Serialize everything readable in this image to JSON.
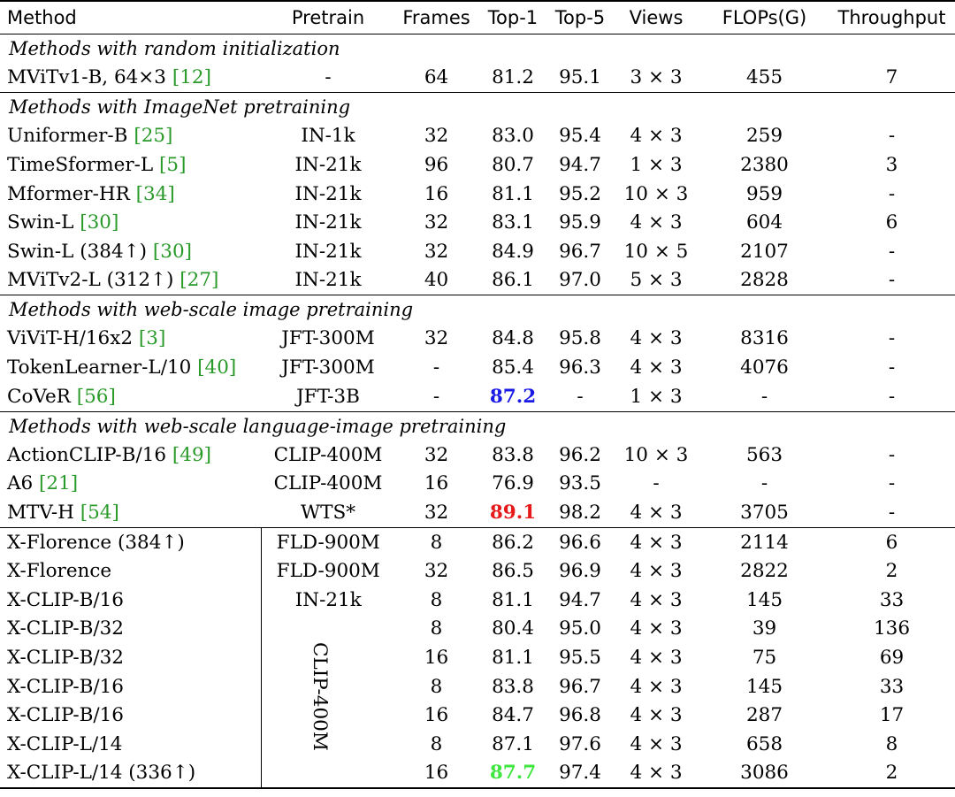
{
  "headers": {
    "method": "Method",
    "pretrain": "Pretrain",
    "frames": "Frames",
    "top1": "Top-1",
    "top5": "Top-5",
    "views": "Views",
    "flops": "FLOPs(G)",
    "throughput": "Throughput"
  },
  "sections": {
    "random": "Methods with random initialization",
    "imagenet": "Methods with ImageNet pretraining",
    "webimage": "Methods with web-scale image pretraining",
    "weblang": "Methods with web-scale language-image pretraining"
  },
  "rows": [
    {
      "method": "MViTv1-B, 64×3 ",
      "ref": "[12]",
      "pretrain": "-",
      "frames": "64",
      "top1": "81.2",
      "top5": "95.1",
      "views": "3 × 3",
      "flops": "455",
      "throughput": "7"
    },
    {
      "method": "Uniformer-B ",
      "ref": "[25]",
      "pretrain": "IN-1k",
      "frames": "32",
      "top1": "83.0",
      "top5": "95.4",
      "views": "4 × 3",
      "flops": "259",
      "throughput": "-"
    },
    {
      "method": "TimeSformer-L ",
      "ref": "[5]",
      "pretrain": "IN-21k",
      "frames": "96",
      "top1": "80.7",
      "top5": "94.7",
      "views": "1 × 3",
      "flops": "2380",
      "throughput": "3"
    },
    {
      "method": "Mformer-HR ",
      "ref": "[34]",
      "pretrain": "IN-21k",
      "frames": "16",
      "top1": "81.1",
      "top5": "95.2",
      "views": "10 × 3",
      "flops": "959",
      "throughput": "-"
    },
    {
      "method": "Swin-L ",
      "ref": "[30]",
      "pretrain": "IN-21k",
      "frames": "32",
      "top1": "83.1",
      "top5": "95.9",
      "views": "4 × 3",
      "flops": "604",
      "throughput": "6"
    },
    {
      "method": "Swin-L (384↑) ",
      "ref": "[30]",
      "pretrain": "IN-21k",
      "frames": "32",
      "top1": "84.9",
      "top5": "96.7",
      "views": "10 × 5",
      "flops": "2107",
      "throughput": "-"
    },
    {
      "method": "MViTv2-L (312↑) ",
      "ref": "[27]",
      "pretrain": "IN-21k",
      "frames": "40",
      "top1": "86.1",
      "top5": "97.0",
      "views": "5 × 3",
      "flops": "2828",
      "throughput": "-"
    },
    {
      "method": "ViViT-H/16x2 ",
      "ref": "[3]",
      "pretrain": "JFT-300M",
      "frames": "32",
      "top1": "84.8",
      "top5": "95.8",
      "views": "4 × 3",
      "flops": "8316",
      "throughput": "-"
    },
    {
      "method": "TokenLearner-L/10 ",
      "ref": "[40]",
      "pretrain": "JFT-300M",
      "frames": "-",
      "top1": "85.4",
      "top5": "96.3",
      "views": "4 × 3",
      "flops": "4076",
      "throughput": "-"
    },
    {
      "method": "CoVeR ",
      "ref": "[56]",
      "pretrain": "JFT-3B",
      "frames": "-",
      "top1": "87.2",
      "top5": "-",
      "views": "1 × 3",
      "flops": "-",
      "throughput": "-"
    },
    {
      "method": "ActionCLIP-B/16 ",
      "ref": "[49]",
      "pretrain": "CLIP-400M",
      "frames": "32",
      "top1": "83.8",
      "top5": "96.2",
      "views": "10 × 3",
      "flops": "563",
      "throughput": "-"
    },
    {
      "method": "A6 ",
      "ref": "[21]",
      "pretrain": "CLIP-400M",
      "frames": "16",
      "top1": "76.9",
      "top5": "93.5",
      "views": "-",
      "flops": "-",
      "throughput": "-"
    },
    {
      "method": "MTV-H ",
      "ref": "[54]",
      "pretrain": "WTS*",
      "frames": "32",
      "top1": "89.1",
      "top5": "98.2",
      "views": "4 × 3",
      "flops": "3705",
      "throughput": "-"
    },
    {
      "method": "X-Florence (384↑)",
      "ref": "",
      "pretrain": "FLD-900M",
      "frames": "8",
      "top1": "86.2",
      "top5": "96.6",
      "views": "4 × 3",
      "flops": "2114",
      "throughput": "6"
    },
    {
      "method": "X-Florence",
      "ref": "",
      "pretrain": "FLD-900M",
      "frames": "32",
      "top1": "86.5",
      "top5": "96.9",
      "views": "4 × 3",
      "flops": "2822",
      "throughput": "2"
    },
    {
      "method": "X-CLIP-B/16",
      "ref": "",
      "pretrain": "IN-21k",
      "frames": "8",
      "top1": "81.1",
      "top5": "94.7",
      "views": "4 × 3",
      "flops": "145",
      "throughput": "33"
    },
    {
      "method": "X-CLIP-B/32",
      "ref": "",
      "pretrain": "",
      "frames": "8",
      "top1": "80.4",
      "top5": "95.0",
      "views": "4 × 3",
      "flops": "39",
      "throughput": "136"
    },
    {
      "method": "X-CLIP-B/32",
      "ref": "",
      "pretrain": "",
      "frames": "16",
      "top1": "81.1",
      "top5": "95.5",
      "views": "4 × 3",
      "flops": "75",
      "throughput": "69"
    },
    {
      "method": "X-CLIP-B/16",
      "ref": "",
      "pretrain": "",
      "frames": "8",
      "top1": "83.8",
      "top5": "96.7",
      "views": "4 × 3",
      "flops": "145",
      "throughput": "33"
    },
    {
      "method": "X-CLIP-B/16",
      "ref": "",
      "pretrain": "",
      "frames": "16",
      "top1": "84.7",
      "top5": "96.8",
      "views": "4 × 3",
      "flops": "287",
      "throughput": "17"
    },
    {
      "method": "X-CLIP-L/14",
      "ref": "",
      "pretrain": "",
      "frames": "8",
      "top1": "87.1",
      "top5": "97.6",
      "views": "4 × 3",
      "flops": "658",
      "throughput": "8"
    },
    {
      "method": "X-CLIP-L/14 (336↑)",
      "ref": "",
      "pretrain": "",
      "frames": "16",
      "top1": "87.7",
      "top5": "97.4",
      "views": "4 × 3",
      "flops": "3086",
      "throughput": "2"
    }
  ],
  "merged_pretrain": "CLIP-400M",
  "colors": {
    "ref": "#2a9a2a",
    "blue": "#1a1ae6",
    "red": "#e61a1a",
    "green": "#3fe63f"
  }
}
